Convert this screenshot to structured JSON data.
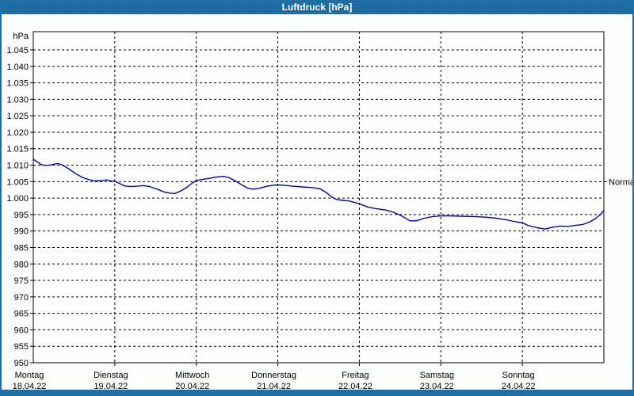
{
  "window": {
    "title": "Luftdruck [hPa]",
    "titlebar_color": "#1e6fa6",
    "border_color": "#1e6fa6",
    "background_color": "#fdfefe"
  },
  "chart_data": {
    "type": "line",
    "title": "Luftdruck [hPa]",
    "ylabel": "hPa",
    "xlabel": "",
    "ylim": [
      950,
      1050
    ],
    "x_range_days": [
      0,
      7
    ],
    "grid": "dashed",
    "grid_color": "#000000",
    "text_color": "#000000",
    "legend_position": "none",
    "normal_marker": {
      "label": "Normal",
      "value": 1005
    },
    "yticks": [
      {
        "value": 1045,
        "label": "1.045"
      },
      {
        "value": 1040,
        "label": "1.040"
      },
      {
        "value": 1035,
        "label": "1.035"
      },
      {
        "value": 1030,
        "label": "1.030"
      },
      {
        "value": 1025,
        "label": "1.025"
      },
      {
        "value": 1020,
        "label": "1.020"
      },
      {
        "value": 1015,
        "label": "1.015"
      },
      {
        "value": 1010,
        "label": "1.010"
      },
      {
        "value": 1005,
        "label": "1.005"
      },
      {
        "value": 1000,
        "label": "1.000"
      },
      {
        "value": 995,
        "label": "995"
      },
      {
        "value": 990,
        "label": "990"
      },
      {
        "value": 985,
        "label": "985"
      },
      {
        "value": 980,
        "label": "980"
      },
      {
        "value": 975,
        "label": "975"
      },
      {
        "value": 970,
        "label": "970"
      },
      {
        "value": 965,
        "label": "965"
      },
      {
        "value": 960,
        "label": "960"
      },
      {
        "value": 955,
        "label": "955"
      },
      {
        "value": 950,
        "label": "950"
      }
    ],
    "days": [
      {
        "weekday": "Montag",
        "date": "18.04.22"
      },
      {
        "weekday": "Dienstag",
        "date": "19.04.22"
      },
      {
        "weekday": "Mittwoch",
        "date": "20.04.22"
      },
      {
        "weekday": "Donnerstag",
        "date": "21.04.22"
      },
      {
        "weekday": "Freitag",
        "date": "22.04.22"
      },
      {
        "weekday": "Samstag",
        "date": "23.04.22"
      },
      {
        "weekday": "Sonntag",
        "date": "24.04.22"
      }
    ],
    "series": [
      {
        "name": "Luftdruck",
        "color": "#0000cc",
        "points": [
          [
            0.0,
            1011.8
          ],
          [
            0.05,
            1011.0
          ],
          [
            0.1,
            1010.1
          ],
          [
            0.17,
            1009.9
          ],
          [
            0.24,
            1010.2
          ],
          [
            0.3,
            1010.5
          ],
          [
            0.36,
            1010.0
          ],
          [
            0.44,
            1008.8
          ],
          [
            0.52,
            1007.4
          ],
          [
            0.6,
            1006.3
          ],
          [
            0.68,
            1005.6
          ],
          [
            0.76,
            1005.2
          ],
          [
            0.84,
            1005.3
          ],
          [
            0.9,
            1005.5
          ],
          [
            0.96,
            1005.2
          ],
          [
            1.0,
            1005.1
          ],
          [
            1.06,
            1004.4
          ],
          [
            1.12,
            1003.7
          ],
          [
            1.2,
            1003.5
          ],
          [
            1.28,
            1003.6
          ],
          [
            1.35,
            1003.8
          ],
          [
            1.43,
            1003.5
          ],
          [
            1.52,
            1002.7
          ],
          [
            1.6,
            1001.9
          ],
          [
            1.68,
            1001.5
          ],
          [
            1.74,
            1001.4
          ],
          [
            1.82,
            1002.3
          ],
          [
            1.89,
            1003.4
          ],
          [
            1.95,
            1004.6
          ],
          [
            2.0,
            1005.3
          ],
          [
            2.08,
            1005.7
          ],
          [
            2.16,
            1006.0
          ],
          [
            2.25,
            1006.4
          ],
          [
            2.33,
            1006.6
          ],
          [
            2.4,
            1006.2
          ],
          [
            2.48,
            1005.2
          ],
          [
            2.56,
            1004.0
          ],
          [
            2.63,
            1003.0
          ],
          [
            2.7,
            1002.7
          ],
          [
            2.78,
            1003.0
          ],
          [
            2.87,
            1003.6
          ],
          [
            2.94,
            1003.9
          ],
          [
            3.0,
            1004.0
          ],
          [
            3.08,
            1003.9
          ],
          [
            3.18,
            1003.6
          ],
          [
            3.3,
            1003.4
          ],
          [
            3.42,
            1003.2
          ],
          [
            3.52,
            1002.8
          ],
          [
            3.6,
            1001.6
          ],
          [
            3.66,
            1000.3
          ],
          [
            3.72,
            999.6
          ],
          [
            3.8,
            999.3
          ],
          [
            3.88,
            999.1
          ],
          [
            3.95,
            998.6
          ],
          [
            4.0,
            998.3
          ],
          [
            4.1,
            997.3
          ],
          [
            4.2,
            996.8
          ],
          [
            4.32,
            996.4
          ],
          [
            4.42,
            995.7
          ],
          [
            4.52,
            994.6
          ],
          [
            4.62,
            993.1
          ],
          [
            4.7,
            993.1
          ],
          [
            4.8,
            993.9
          ],
          [
            4.9,
            994.4
          ],
          [
            5.0,
            994.6
          ],
          [
            5.12,
            994.6
          ],
          [
            5.25,
            994.5
          ],
          [
            5.4,
            994.4
          ],
          [
            5.55,
            994.2
          ],
          [
            5.68,
            993.9
          ],
          [
            5.8,
            993.4
          ],
          [
            5.92,
            992.8
          ],
          [
            6.0,
            992.5
          ],
          [
            6.08,
            991.6
          ],
          [
            6.18,
            991.0
          ],
          [
            6.28,
            990.6
          ],
          [
            6.38,
            991.2
          ],
          [
            6.48,
            991.5
          ],
          [
            6.56,
            991.4
          ],
          [
            6.65,
            991.7
          ],
          [
            6.74,
            992.0
          ],
          [
            6.82,
            992.7
          ],
          [
            6.9,
            993.8
          ],
          [
            6.96,
            995.1
          ],
          [
            7.0,
            996.3
          ]
        ]
      }
    ]
  }
}
